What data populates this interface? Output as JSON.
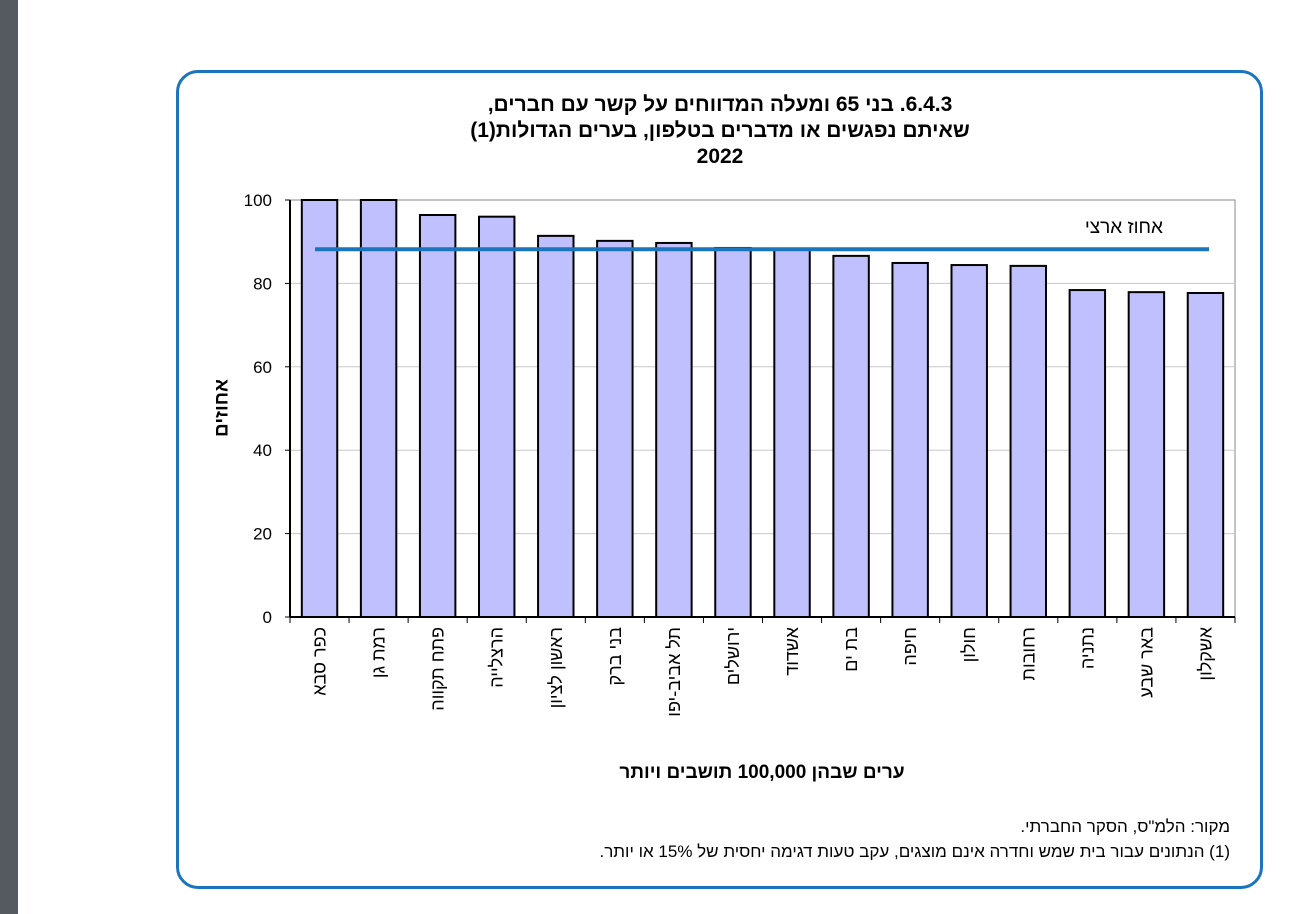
{
  "chart_data": {
    "type": "bar",
    "title_lines": [
      "6.4.3. בני 65 ומעלה המדווחים על קשר עם חברים,",
      "שאיתם נפגשים או מדברים בטלפון, בערים הגדולות(1)",
      "2022"
    ],
    "xlabel": "ערים שבהן 100,000 תושבים ויותר",
    "ylabel": "אחוזים",
    "ylim": [
      0,
      100
    ],
    "yticks": [
      0,
      20,
      40,
      60,
      80,
      100
    ],
    "grid": true,
    "categories": [
      "כפר סבא",
      "רמת גן",
      "פתח תקווה",
      "הרצלייה",
      "ראשון לציון",
      "בני ברק",
      "תל אביב-יפו",
      "ירושלים",
      "אשדוד",
      "בת ים",
      "חיפה",
      "חולון",
      "רחובות",
      "נתניה",
      "באר שבע",
      "אשקלון"
    ],
    "values": [
      100,
      100,
      96.4,
      96.0,
      91.4,
      90.2,
      89.7,
      88.5,
      88.1,
      86.6,
      84.9,
      84.4,
      84.2,
      78.4,
      77.9,
      77.7
    ],
    "reference_line": {
      "label": "אחוז ארצי",
      "value": 88.2
    },
    "bar_color": "#c0c0ff",
    "line_color": "#1a75bc"
  },
  "notes": {
    "source": "מקור: הלמ\"ס, הסקר החברתי.",
    "footnote": "(1) הנתונים עבור בית שמש וחדרה אינם מוצגים, עקב טעות דגימה יחסית של 15% או יותר."
  }
}
